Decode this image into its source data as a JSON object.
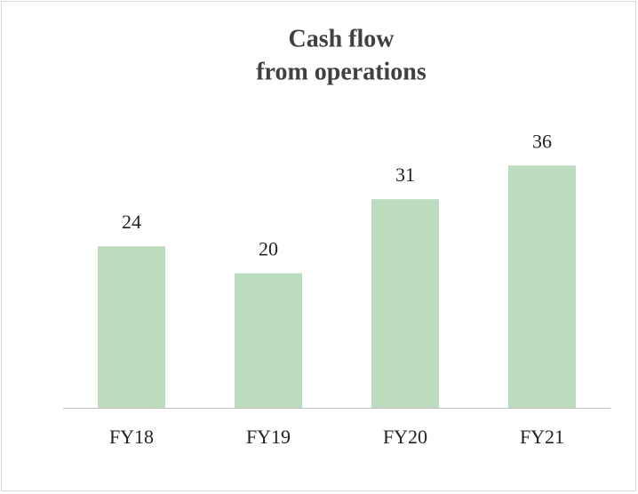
{
  "chart_data": {
    "type": "bar",
    "title": [
      "Cash flow",
      "from operations"
    ],
    "categories": [
      "FY18",
      "FY19",
      "FY20",
      "FY21"
    ],
    "values": [
      24,
      20,
      31,
      36
    ],
    "color": "#bcdcbf",
    "ylim": [
      0,
      40
    ]
  }
}
